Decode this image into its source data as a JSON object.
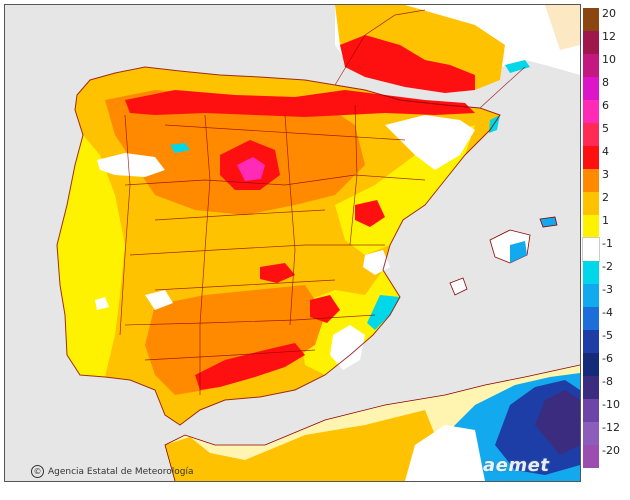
{
  "map": {
    "region": "Iberian Peninsula and Balearic Islands",
    "sea_color": "#e6e6e6",
    "border_color": "#8b0000"
  },
  "legend": {
    "labels": [
      "20",
      "12",
      "10",
      "8",
      "6",
      "5",
      "4",
      "3",
      "2",
      "1",
      "-1",
      "-2",
      "-3",
      "-4",
      "-5",
      "-6",
      "-8",
      "-10",
      "-12",
      "-20"
    ],
    "colors": [
      "#8b4513",
      "#a0184b",
      "#c2187f",
      "#dd15c8",
      "#ff2bb6",
      "#ff2a55",
      "#ff1010",
      "#ff8a00",
      "#ffc200",
      "#fff200",
      "#ffffff",
      "#00d7e8",
      "#13a9ee",
      "#1c6fd8",
      "#1c3ea6",
      "#162a7a",
      "#3c2c80",
      "#6d44a7",
      "#8d5dbc",
      "#9a4fb0"
    ]
  },
  "credit": {
    "agency": "Agencia Estatal de Meteorología",
    "symbol": "©"
  },
  "logo": {
    "text": "aemet"
  }
}
